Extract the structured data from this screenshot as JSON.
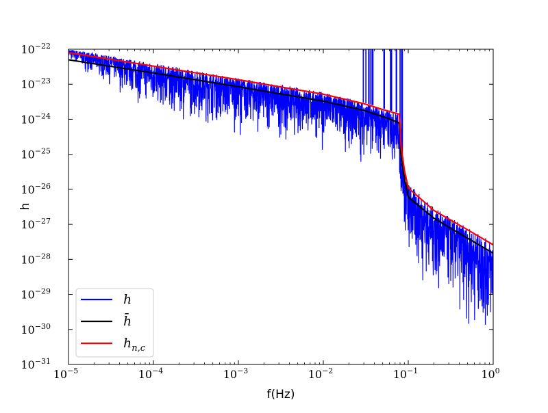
{
  "chart_data": {
    "type": "line",
    "title": "",
    "xlabel": "f(Hz)",
    "ylabel": "h",
    "x_scale": "log",
    "y_scale": "log",
    "xlim": [
      1e-05,
      1
    ],
    "ylim": [
      1e-31,
      1e-22
    ],
    "x_ticks": [
      {
        "value": 1e-05,
        "base": "10",
        "exp": "−5"
      },
      {
        "value": 0.0001,
        "base": "10",
        "exp": "−4"
      },
      {
        "value": 0.001,
        "base": "10",
        "exp": "−3"
      },
      {
        "value": 0.01,
        "base": "10",
        "exp": "−2"
      },
      {
        "value": 0.1,
        "base": "10",
        "exp": "−1"
      },
      {
        "value": 1,
        "base": "10",
        "exp": "0"
      }
    ],
    "y_ticks": [
      {
        "value": 1e-22,
        "base": "10",
        "exp": "−22"
      },
      {
        "value": 1e-23,
        "base": "10",
        "exp": "−23"
      },
      {
        "value": 1e-24,
        "base": "10",
        "exp": "−24"
      },
      {
        "value": 1e-25,
        "base": "10",
        "exp": "−25"
      },
      {
        "value": 1e-26,
        "base": "10",
        "exp": "−26"
      },
      {
        "value": 1e-27,
        "base": "10",
        "exp": "−27"
      },
      {
        "value": 1e-28,
        "base": "10",
        "exp": "−28"
      },
      {
        "value": 1e-29,
        "base": "10",
        "exp": "−29"
      },
      {
        "value": 1e-30,
        "base": "10",
        "exp": "−30"
      },
      {
        "value": 1e-31,
        "base": "10",
        "exp": "−31"
      }
    ],
    "grid": false,
    "legend_position": "lower-left",
    "series": [
      {
        "name": "h",
        "color": "#0000ff",
        "style": "noisy-band",
        "upper": [
          {
            "x": 1e-05,
            "y": 1e-22
          },
          {
            "x": 0.0001,
            "y": 4e-23
          },
          {
            "x": 0.001,
            "y": 1.5e-23
          },
          {
            "x": 0.01,
            "y": 6e-24
          },
          {
            "x": 0.03,
            "y": 3e-24
          },
          {
            "x": 0.078,
            "y": 1.5e-24
          },
          {
            "x": 0.08,
            "y": 1.2e-25
          },
          {
            "x": 0.1,
            "y": 1.5e-26
          },
          {
            "x": 0.2,
            "y": 3e-27
          },
          {
            "x": 0.5,
            "y": 8e-28
          },
          {
            "x": 1,
            "y": 3e-28
          }
        ],
        "lower": [
          {
            "x": 1e-05,
            "y": 4e-23
          },
          {
            "x": 0.0001,
            "y": 1e-24
          },
          {
            "x": 0.001,
            "y": 3e-25
          },
          {
            "x": 0.01,
            "y": 1e-25
          },
          {
            "x": 0.078,
            "y": 2e-26
          },
          {
            "x": 0.08,
            "y": 5e-27
          },
          {
            "x": 0.1,
            "y": 2e-29
          },
          {
            "x": 0.3,
            "y": 2e-30
          },
          {
            "x": 1,
            "y": 1e-31
          }
        ],
        "spikes_near_x": [
          0.035,
          0.055,
          0.075
        ]
      },
      {
        "name": "h̄",
        "color": "#000000",
        "points": [
          {
            "x": 1e-05,
            "y": 5e-23
          },
          {
            "x": 0.0001,
            "y": 2.1e-23
          },
          {
            "x": 0.001,
            "y": 8.5e-24
          },
          {
            "x": 0.01,
            "y": 3.3e-24
          },
          {
            "x": 0.03,
            "y": 1.8e-24
          },
          {
            "x": 0.05,
            "y": 1.2e-24
          },
          {
            "x": 0.078,
            "y": 8e-25
          },
          {
            "x": 0.08,
            "y": 4e-25
          },
          {
            "x": 0.082,
            "y": 1e-25
          },
          {
            "x": 0.09,
            "y": 2e-26
          },
          {
            "x": 0.1,
            "y": 6e-27
          },
          {
            "x": 0.2,
            "y": 1.5e-27
          },
          {
            "x": 0.5,
            "y": 4e-28
          },
          {
            "x": 1,
            "y": 1.5e-28
          }
        ]
      },
      {
        "name": "h_{n,c}",
        "color": "#ff0000",
        "points": [
          {
            "x": 1e-05,
            "y": 8e-23
          },
          {
            "x": 0.0001,
            "y": 3.3e-23
          },
          {
            "x": 0.001,
            "y": 1.35e-23
          },
          {
            "x": 0.01,
            "y": 5.2e-24
          },
          {
            "x": 0.03,
            "y": 2.8e-24
          },
          {
            "x": 0.05,
            "y": 1.9e-24
          },
          {
            "x": 0.078,
            "y": 1.4e-24
          },
          {
            "x": 0.08,
            "y": 7e-25
          },
          {
            "x": 0.082,
            "y": 1.8e-25
          },
          {
            "x": 0.09,
            "y": 3.5e-26
          },
          {
            "x": 0.1,
            "y": 1.1e-26
          },
          {
            "x": 0.2,
            "y": 2.5e-27
          },
          {
            "x": 0.5,
            "y": 7e-28
          },
          {
            "x": 1,
            "y": 2.6e-28
          }
        ]
      }
    ],
    "legend": [
      {
        "label": "h",
        "sub": "",
        "color": "#0000ff"
      },
      {
        "label": "h̄",
        "sub": "",
        "color": "#000000"
      },
      {
        "label": "h",
        "sub": "n,c",
        "color": "#ff0000"
      }
    ]
  }
}
